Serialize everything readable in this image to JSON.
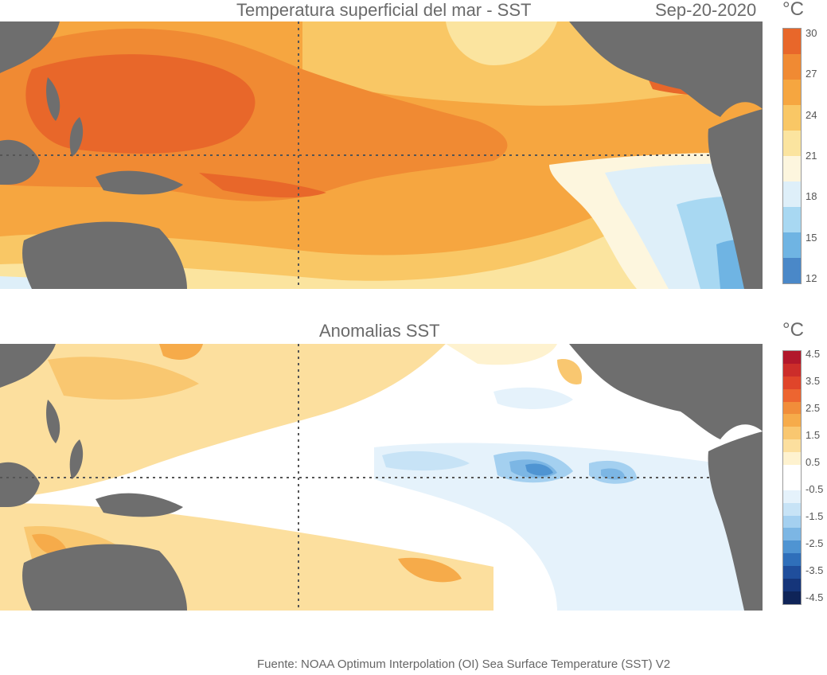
{
  "sst": {
    "title": "Temperatura superficial del mar - SST",
    "date": "Sep-20-2020",
    "unit": "°C",
    "colorbar": {
      "ticks": [
        "30",
        "27",
        "24",
        "21",
        "18",
        "15",
        "12"
      ],
      "colors": [
        "#e8672a",
        "#f08a33",
        "#f6a640",
        "#f9c765",
        "#fbe49f",
        "#fdf6de",
        "#deeff9",
        "#a8d8f2",
        "#6fb4e3",
        "#4a88c8"
      ]
    }
  },
  "anomaly": {
    "title": "Anomalias SST",
    "unit": "°C",
    "colorbar": {
      "ticks": [
        "4.5",
        "3.5",
        "2.5",
        "1.5",
        "0.5",
        "-0.5",
        "-1.5",
        "-2.5",
        "-3.5",
        "-4.5"
      ],
      "colors": [
        "#b2182b",
        "#cc2d2a",
        "#e0452a",
        "#ed6530",
        "#f18d3a",
        "#f6ab4a",
        "#f9c770",
        "#fcdf9e",
        "#fef2cf",
        "#ffffff",
        "#ffffff",
        "#e5f2fb",
        "#c7e3f6",
        "#a4d0f0",
        "#7cb6e4",
        "#4f94d2",
        "#2f6fba",
        "#1f4e9c",
        "#15357a",
        "#0f2458"
      ]
    }
  },
  "source": "Fuente: NOAA Optimum Interpolation (OI) Sea Surface Temperature (SST) V2"
}
